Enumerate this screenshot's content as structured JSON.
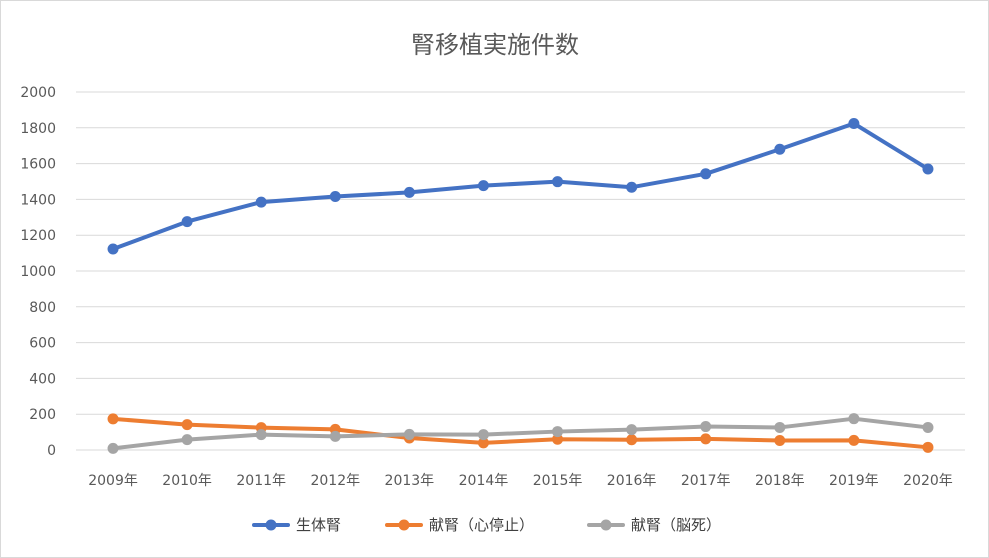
{
  "chart_data": {
    "type": "line",
    "title": "腎移植実施件数",
    "categories": [
      "2009年",
      "2010年",
      "2011年",
      "2012年",
      "2013年",
      "2014年",
      "2015年",
      "2016年",
      "2017年",
      "2018年",
      "2019年",
      "2020年"
    ],
    "series": [
      {
        "name": "生体腎",
        "color": "#4472c4",
        "values": [
          1123,
          1276,
          1385,
          1416,
          1439,
          1477,
          1499,
          1468,
          1543,
          1680,
          1824,
          1570
        ]
      },
      {
        "name": "献腎（心停止）",
        "color": "#ed7d31",
        "values": [
          174,
          142,
          125,
          115,
          67,
          40,
          60,
          57,
          62,
          53,
          54,
          15
        ]
      },
      {
        "name": "献腎（脳死）",
        "color": "#a5a5a5",
        "values": [
          9,
          58,
          86,
          76,
          87,
          86,
          103,
          114,
          131,
          126,
          175,
          126
        ]
      }
    ],
    "ylim": [
      0,
      2000
    ],
    "yticks": [
      "0",
      "200",
      "400",
      "600",
      "800",
      "1000",
      "1200",
      "1400",
      "1600",
      "1800",
      "2000"
    ],
    "grid": true,
    "legend": "bottom"
  }
}
